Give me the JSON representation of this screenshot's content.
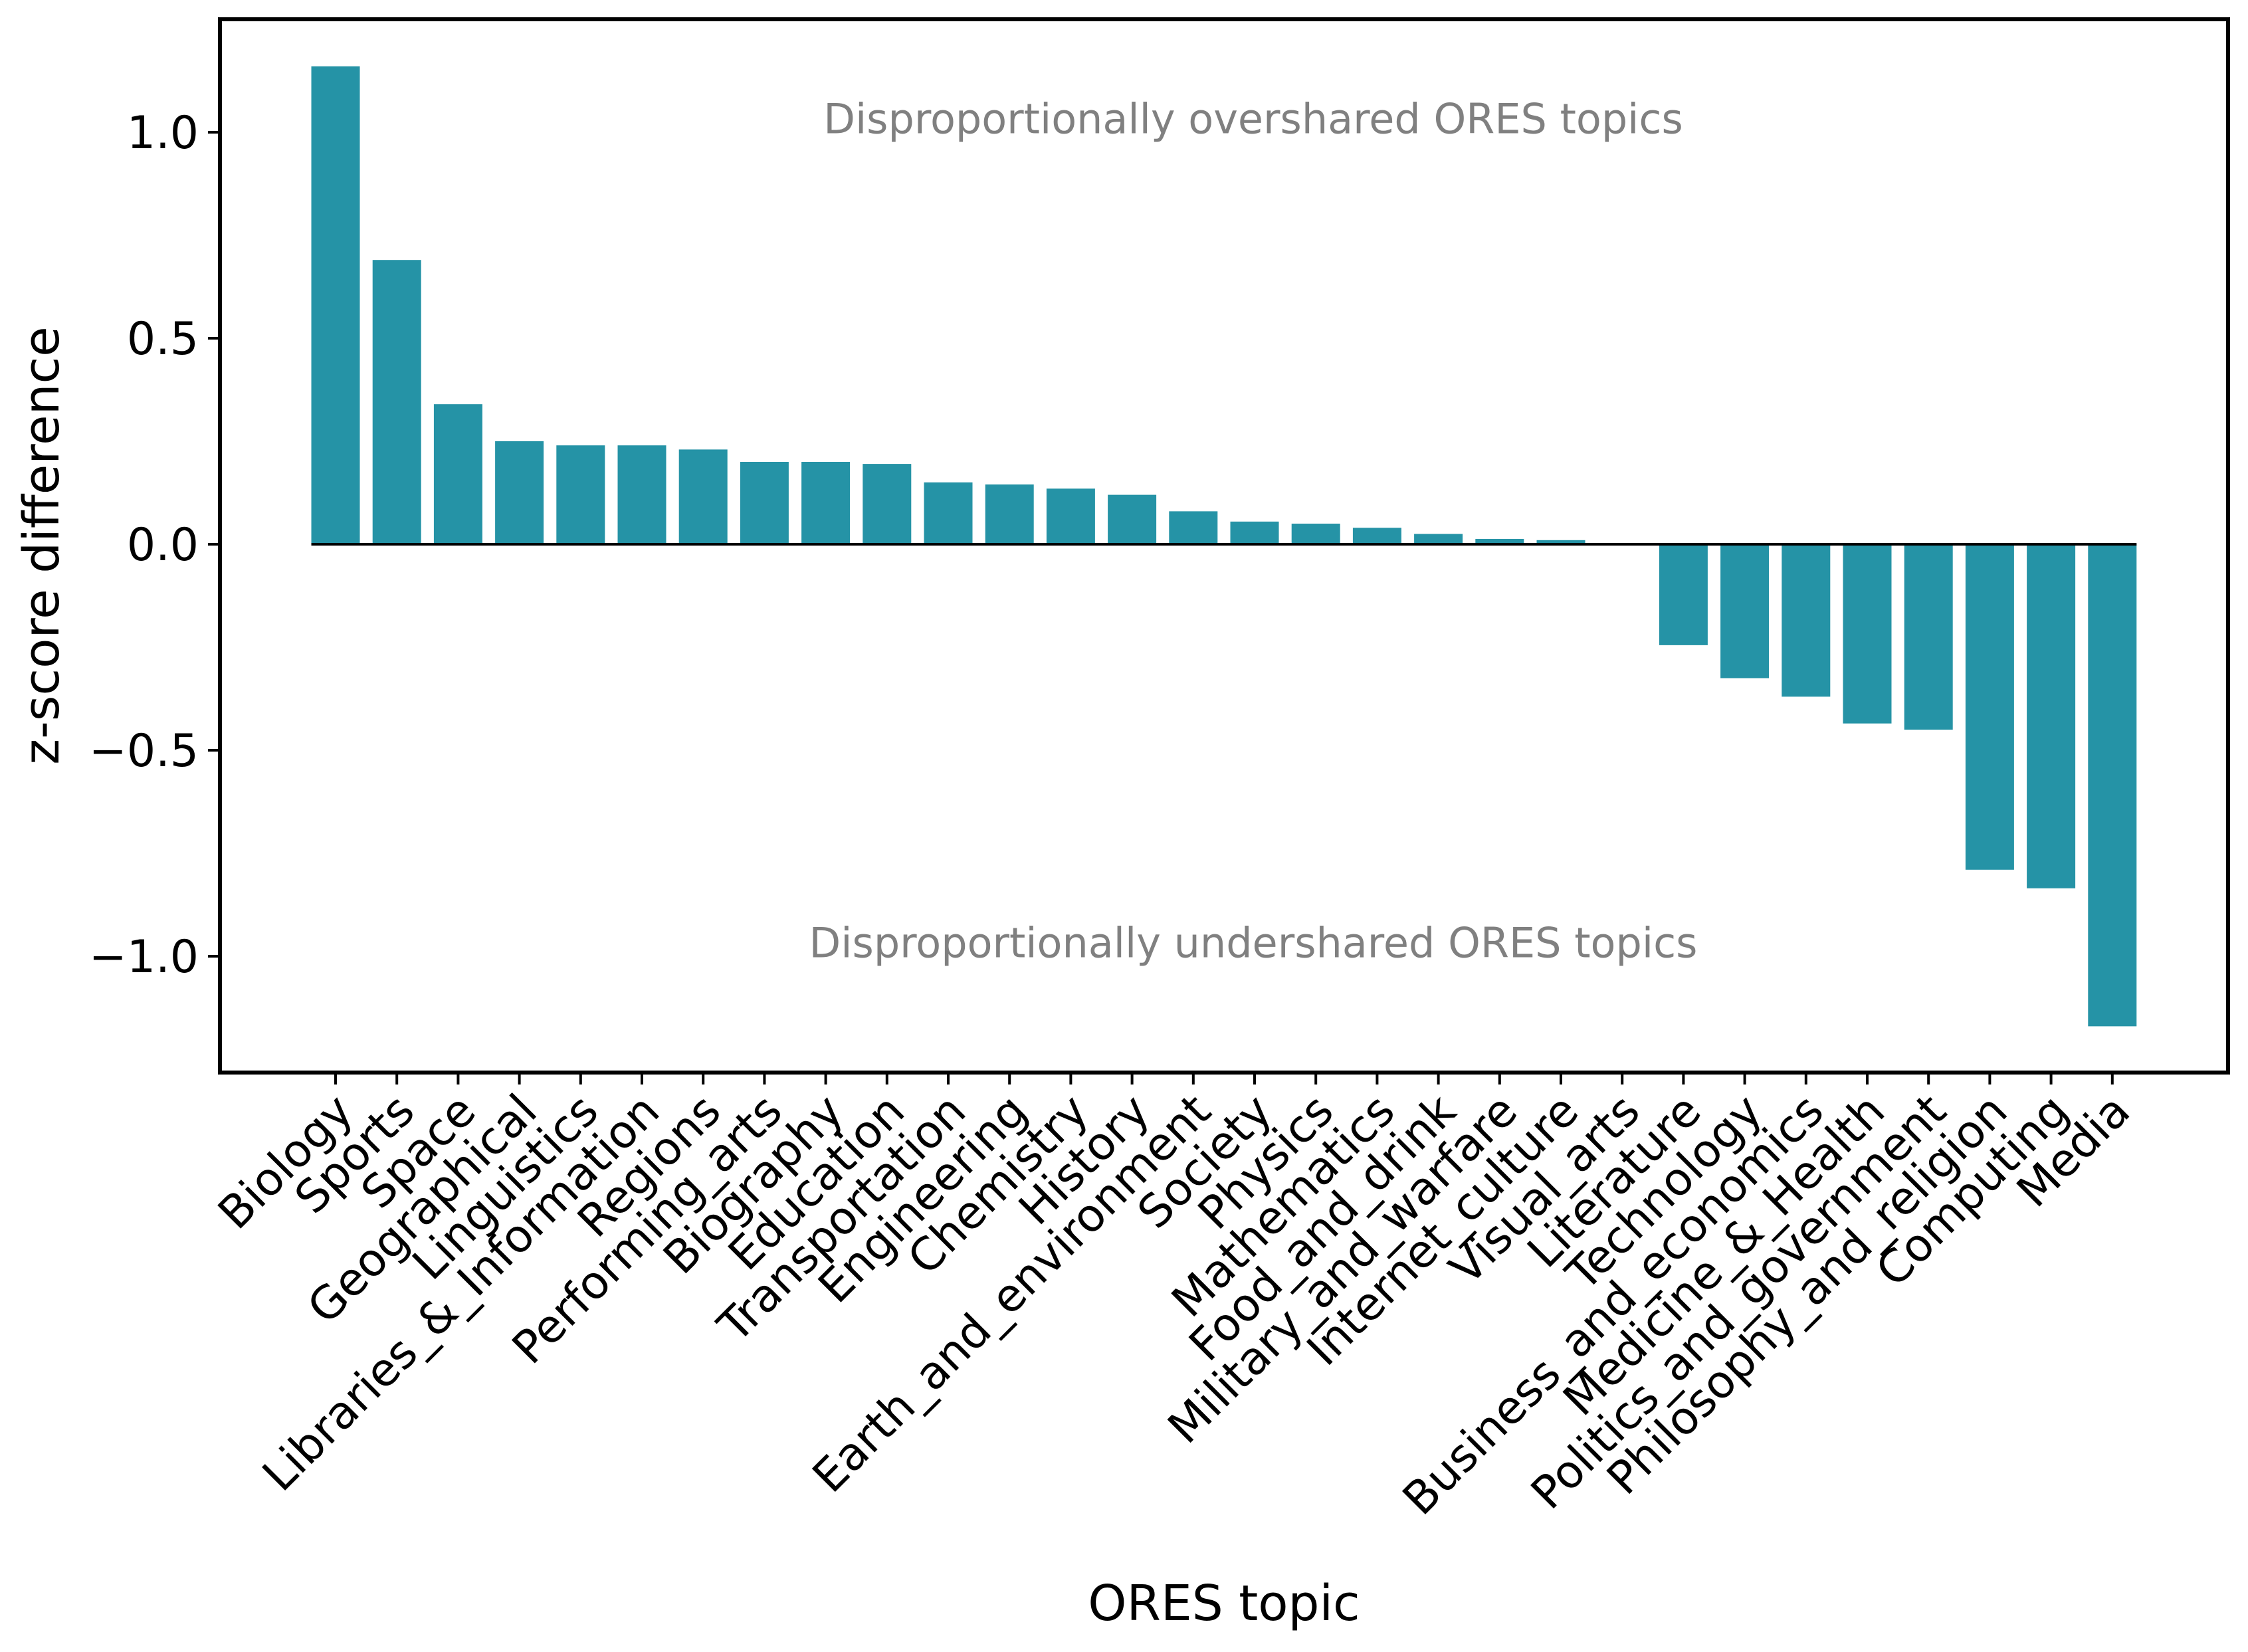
{
  "chart_data": {
    "type": "bar",
    "xlabel": "ORES topic",
    "ylabel": "z-score difference",
    "ylim": [
      -1.27,
      1.28
    ],
    "yticks": [
      1.0,
      0.5,
      0.0,
      -0.5,
      -1.0
    ],
    "ytick_labels": [
      "1.0",
      "0.5",
      "0.0",
      "−0.5",
      "−1.0"
    ],
    "grid": false,
    "legend": "none",
    "bar_color": "#2593a6",
    "zero_line": true,
    "categories": [
      "Biology",
      "Sports",
      "Space",
      "Geographical",
      "Linguistics",
      "Libraries_&_Information",
      "Regions",
      "Performing_arts",
      "Biography",
      "Education",
      "Transportation",
      "Engineering",
      "Chemistry",
      "History",
      "Earth_and_environment",
      "Society",
      "Physics",
      "Mathematics",
      "Food_and_drink",
      "Military_and_warfare",
      "Internet_culture",
      "Visual_arts",
      "Literature",
      "Technology",
      "Business_and_economics",
      "Medicine_&_Health",
      "Politics_and_government",
      "Philosophy_and_religion",
      "Computing",
      "Media"
    ],
    "values": [
      1.16,
      0.69,
      0.34,
      0.25,
      0.24,
      0.24,
      0.23,
      0.2,
      0.2,
      0.195,
      0.15,
      0.145,
      0.135,
      0.12,
      0.08,
      0.055,
      0.05,
      0.04,
      0.025,
      0.013,
      0.01,
      0.0,
      -0.245,
      -0.325,
      -0.37,
      -0.435,
      -0.45,
      -0.79,
      -0.835,
      -1.17
    ],
    "annotations": [
      {
        "text": "Disproportionally overshared ORES topics",
        "x": 15,
        "y": 1.03
      },
      {
        "text": "Disproportionally undershared ORES topics",
        "x": 15,
        "y": -0.97
      }
    ],
    "annotation_color": "#808080"
  }
}
